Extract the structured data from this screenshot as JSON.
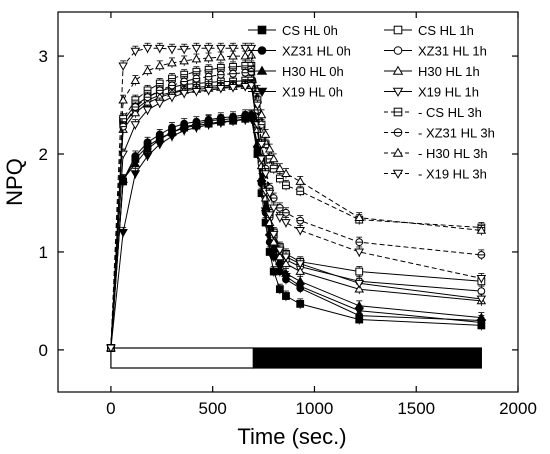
{
  "chart_data": {
    "type": "line",
    "xlabel": "Time (sec.)",
    "ylabel": "NPQ",
    "xlim": [
      -260,
      2000
    ],
    "ylim": [
      -0.43,
      3.45
    ],
    "xticks": [
      0,
      500,
      1000,
      1500,
      2000
    ],
    "yticks": [
      0,
      1,
      2,
      3
    ],
    "x": [
      0,
      60,
      120,
      180,
      240,
      300,
      360,
      420,
      480,
      540,
      600,
      660,
      690,
      720,
      740,
      760,
      780,
      800,
      830,
      860,
      930,
      1220,
      1820
    ],
    "legend_position": "top-right",
    "series": [
      {
        "name": "CS HL 0h",
        "marker": "square-filled",
        "dash": false,
        "values": [
          0.02,
          1.72,
          1.95,
          2.08,
          2.16,
          2.22,
          2.27,
          2.29,
          2.31,
          2.33,
          2.34,
          2.36,
          2.37,
          2.0,
          1.6,
          1.3,
          1.0,
          0.8,
          0.62,
          0.55,
          0.47,
          0.31,
          0.25
        ]
      },
      {
        "name": "XZ31 HL 0h",
        "marker": "circle-filled",
        "dash": false,
        "values": [
          0.02,
          1.73,
          1.98,
          2.12,
          2.2,
          2.27,
          2.31,
          2.33,
          2.35,
          2.37,
          2.38,
          2.4,
          2.4,
          2.05,
          1.7,
          1.4,
          1.1,
          0.95,
          0.8,
          0.72,
          0.63,
          0.35,
          0.3
        ]
      },
      {
        "name": "H30 HL 0h",
        "marker": "triangle-up-filled",
        "dash": false,
        "values": [
          0.02,
          1.74,
          1.9,
          2.05,
          2.15,
          2.22,
          2.28,
          2.3,
          2.34,
          2.35,
          2.36,
          2.38,
          2.39,
          2.1,
          1.75,
          1.45,
          1.2,
          1.05,
          0.9,
          0.78,
          0.7,
          0.45,
          0.33
        ]
      },
      {
        "name": "X19 HL 0h",
        "marker": "triangle-down-filled",
        "dash": false,
        "values": [
          0.02,
          1.2,
          1.8,
          1.98,
          2.1,
          2.18,
          2.24,
          2.27,
          2.3,
          2.32,
          2.34,
          2.35,
          2.36,
          2.05,
          1.7,
          1.42,
          1.15,
          1.0,
          0.85,
          0.75,
          0.65,
          0.4,
          0.28
        ]
      },
      {
        "name": "CS HL 1h",
        "marker": "square-open",
        "dash": false,
        "values": [
          0.02,
          2.34,
          2.5,
          2.58,
          2.64,
          2.68,
          2.71,
          2.72,
          2.73,
          2.74,
          2.74,
          2.75,
          2.75,
          2.3,
          1.95,
          1.65,
          1.4,
          1.2,
          1.05,
          0.98,
          0.9,
          0.8,
          0.7
        ]
      },
      {
        "name": "XZ31 HL 1h",
        "marker": "circle-open",
        "dash": false,
        "values": [
          0.02,
          2.3,
          2.45,
          2.55,
          2.6,
          2.63,
          2.66,
          2.68,
          2.69,
          2.7,
          2.7,
          2.71,
          2.71,
          2.25,
          1.9,
          1.6,
          1.35,
          1.15,
          1.0,
          0.92,
          0.85,
          0.7,
          0.6
        ]
      },
      {
        "name": "H30 HL 1h",
        "marker": "triangle-up-open",
        "dash": false,
        "values": [
          0.02,
          2.25,
          2.42,
          2.52,
          2.58,
          2.62,
          2.65,
          2.66,
          2.67,
          2.68,
          2.69,
          2.7,
          2.7,
          2.25,
          1.88,
          1.55,
          1.3,
          1.1,
          0.95,
          0.88,
          0.8,
          0.62,
          0.5
        ]
      },
      {
        "name": "X19 HL 1h",
        "marker": "triangle-down-open",
        "dash": false,
        "values": [
          0.02,
          2.0,
          2.3,
          2.45,
          2.52,
          2.58,
          2.62,
          2.64,
          2.65,
          2.67,
          2.68,
          2.69,
          2.7,
          2.3,
          1.95,
          1.62,
          1.38,
          1.18,
          1.02,
          0.95,
          0.88,
          0.68,
          0.52
        ]
      },
      {
        "name": "CS HL 3h",
        "marker": "square-cross",
        "dash": true,
        "values": [
          0.02,
          2.36,
          2.55,
          2.65,
          2.72,
          2.77,
          2.81,
          2.84,
          2.86,
          2.88,
          2.89,
          2.9,
          2.9,
          2.55,
          2.3,
          2.1,
          1.95,
          1.85,
          1.75,
          1.68,
          1.62,
          1.33,
          1.25
        ]
      },
      {
        "name": "XZ31 HL 3h",
        "marker": "circle-dash",
        "dash": true,
        "values": [
          0.02,
          2.28,
          2.48,
          2.58,
          2.65,
          2.7,
          2.74,
          2.77,
          2.79,
          2.81,
          2.82,
          2.83,
          2.84,
          2.45,
          2.1,
          1.85,
          1.65,
          1.55,
          1.45,
          1.4,
          1.32,
          1.1,
          0.97
        ]
      },
      {
        "name": "H30 HL 3h",
        "marker": "triangle-up-open",
        "dash": true,
        "values": [
          0.02,
          2.55,
          2.75,
          2.85,
          2.9,
          2.93,
          2.95,
          2.97,
          2.98,
          2.99,
          3.0,
          3.0,
          3.01,
          2.65,
          2.4,
          2.2,
          2.05,
          1.95,
          1.85,
          1.8,
          1.72,
          1.35,
          1.22
        ]
      },
      {
        "name": "X19 HL 3h",
        "marker": "triangle-down-open",
        "dash": true,
        "values": [
          0.02,
          2.9,
          3.05,
          3.08,
          3.08,
          3.07,
          3.07,
          3.08,
          3.08,
          3.08,
          3.08,
          3.08,
          3.08,
          2.5,
          2.1,
          1.8,
          1.6,
          1.45,
          1.35,
          1.3,
          1.22,
          1.0,
          0.73
        ]
      }
    ],
    "light_bar": {
      "light": [
        0,
        700
      ],
      "dark": [
        700,
        1820
      ]
    }
  },
  "colors": {
    "line": "#000000",
    "background": "#ffffff"
  }
}
